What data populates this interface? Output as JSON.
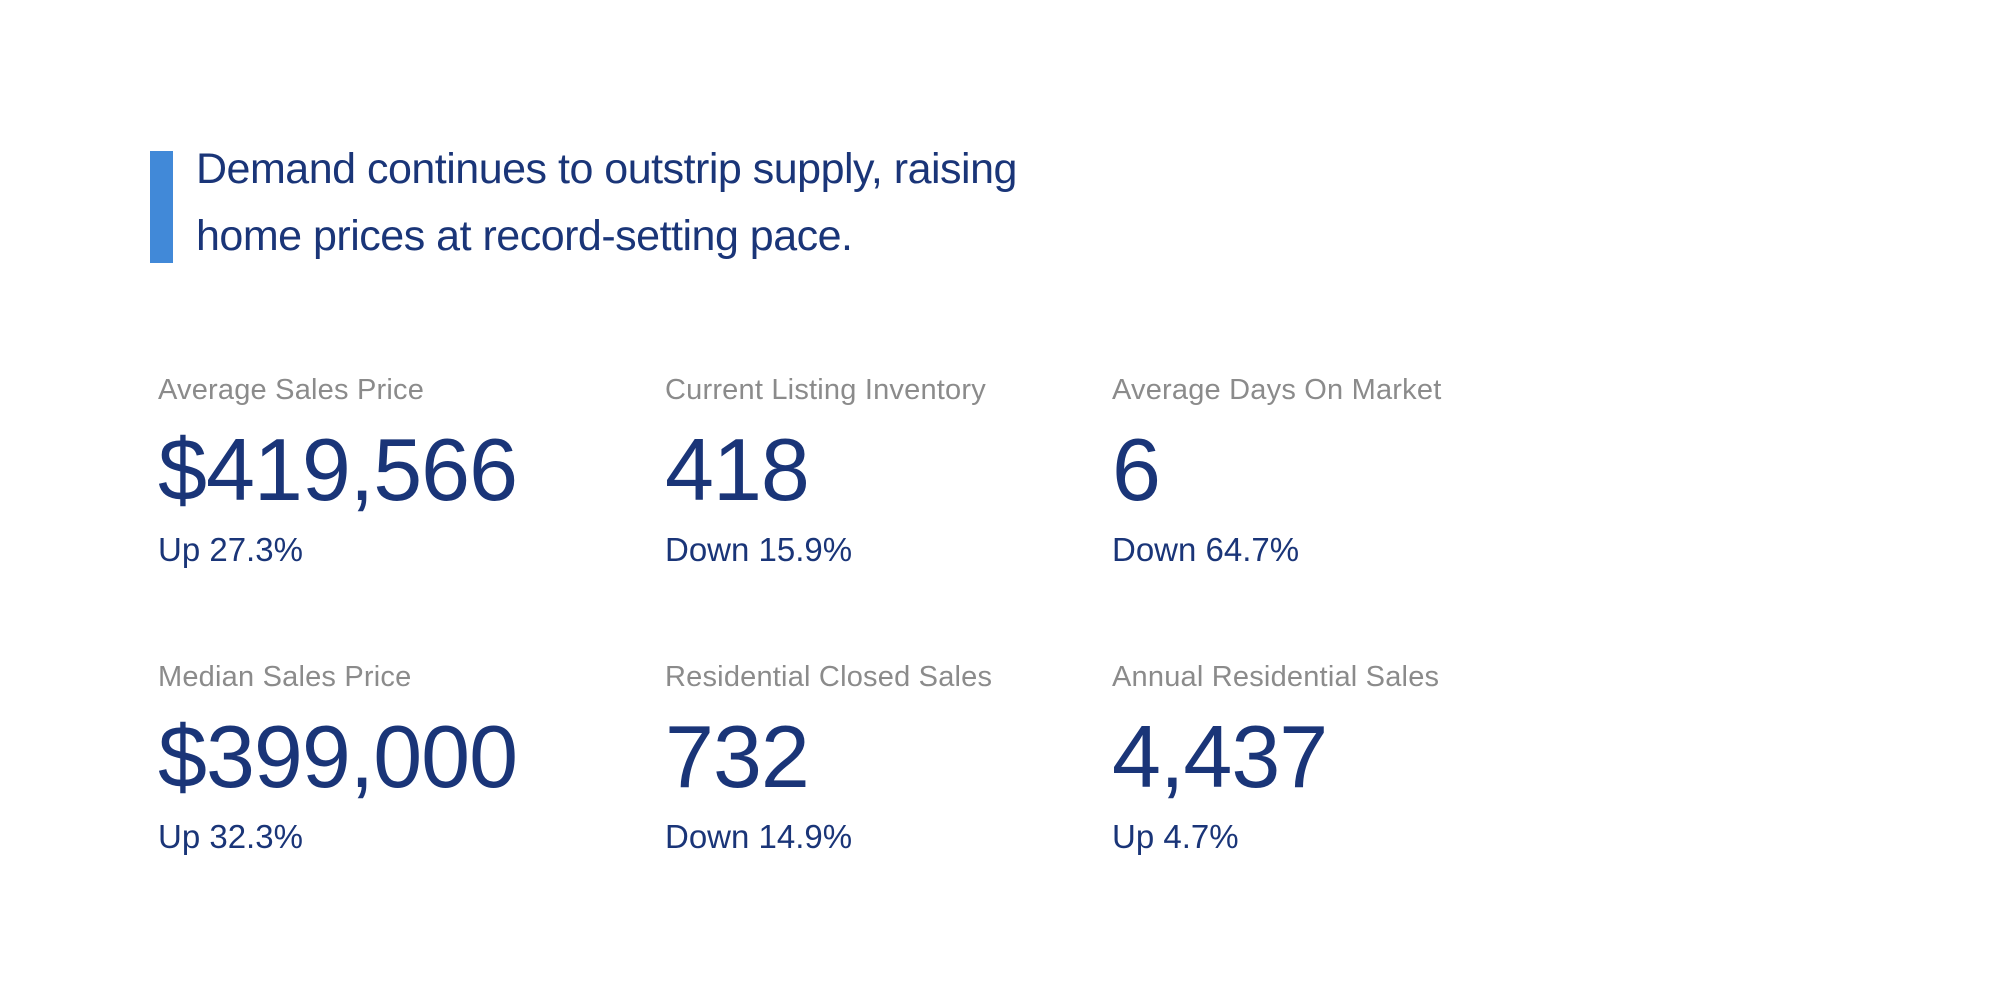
{
  "theme": {
    "background": "#ffffff",
    "accent_blue": "#4189d8",
    "navy": "#1a3578",
    "label_gray": "#8b8b8b"
  },
  "headline": {
    "lines": [
      "Demand continues to outstrip supply, raising",
      "home prices at record-setting pace."
    ]
  },
  "stats": [
    {
      "label": "Average Sales Price",
      "value": "$419,566",
      "change": "Up 27.3%"
    },
    {
      "label": "Current Listing Inventory",
      "value": "418",
      "change": "Down 15.9%"
    },
    {
      "label": "Average Days On Market",
      "value": "6",
      "change": "Down 64.7%"
    },
    {
      "label": "Median Sales Price",
      "value": "$399,000",
      "change": "Up 32.3%"
    },
    {
      "label": "Residential Closed Sales",
      "value": "732",
      "change": "Down 14.9%"
    },
    {
      "label": "Annual Residential Sales",
      "value": "4,437",
      "change": "Up 4.7%"
    }
  ]
}
